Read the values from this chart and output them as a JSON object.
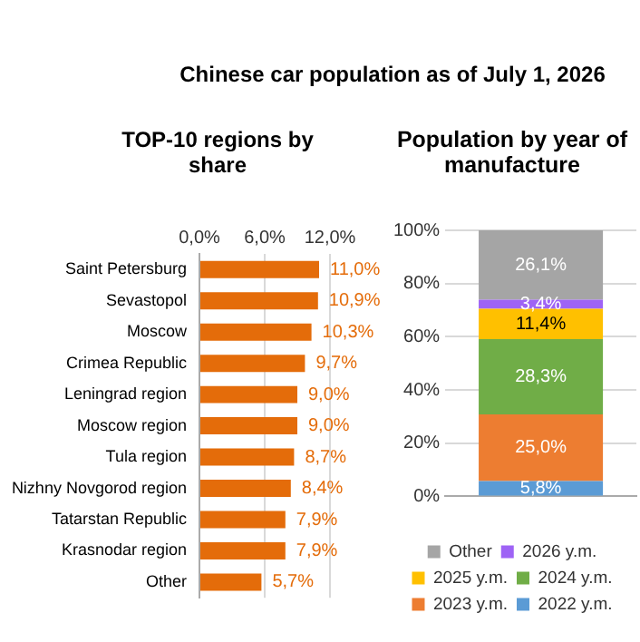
{
  "chart_data": [
    {
      "type": "bar",
      "title": "Chinese car population as of July 1, 2026",
      "subtitle": "TOP-10 regions by share",
      "orientation": "horizontal",
      "categories": [
        "Saint Petersburg",
        "Sevastopol",
        "Moscow",
        "Crimea Republic",
        "Leningrad region",
        "Moscow region",
        "Tula region",
        "Nizhny Novgorod region",
        "Tatarstan Republic",
        "Krasnodar region",
        "Other"
      ],
      "values": [
        11.0,
        10.9,
        10.3,
        9.7,
        9.0,
        9.0,
        8.7,
        8.4,
        7.9,
        7.9,
        5.7
      ],
      "value_labels": [
        "11,0%",
        "10,9%",
        "10,3%",
        "9,7%",
        "9,0%",
        "9,0%",
        "8,7%",
        "8,4%",
        "7,9%",
        "7,9%",
        "5,7%"
      ],
      "color": "#e46c0a",
      "xlim": [
        0,
        12
      ],
      "xticks": [
        {
          "value": 0,
          "label": "0,0%"
        },
        {
          "value": 6,
          "label": "6,0%"
        },
        {
          "value": 12,
          "label": "12,0%"
        }
      ],
      "grid": "x",
      "legend": false
    },
    {
      "type": "bar",
      "title": "Population by year of manufacture",
      "stacked": true,
      "categories": [
        null
      ],
      "series": [
        {
          "name": "2022 y.m.",
          "color": "#5b9bd5",
          "values": [
            5.8
          ],
          "value_labels": [
            "5,8%"
          ]
        },
        {
          "name": "2023 y.m.",
          "color": "#ed7d31",
          "values": [
            25.0
          ],
          "value_labels": [
            "25,0%"
          ]
        },
        {
          "name": "2024 y.m.",
          "color": "#70ad47",
          "values": [
            28.3
          ],
          "value_labels": [
            "28,3%"
          ]
        },
        {
          "name": "2025 y.m.",
          "color": "#ffc000",
          "values": [
            11.4
          ],
          "value_labels": [
            "11,4%"
          ]
        },
        {
          "name": "2026 y.m.",
          "color": "#9e63f5",
          "values": [
            3.4
          ],
          "value_labels": [
            "3,4%"
          ]
        },
        {
          "name": "Other",
          "color": "#a5a5a5",
          "values": [
            26.1
          ],
          "value_labels": [
            "26,1%"
          ]
        }
      ],
      "ylim": [
        0,
        100
      ],
      "yticks": [
        {
          "value": 0,
          "label": "0%"
        },
        {
          "value": 20,
          "label": "20%"
        },
        {
          "value": 40,
          "label": "40%"
        },
        {
          "value": 60,
          "label": "60%"
        },
        {
          "value": 80,
          "label": "80%"
        },
        {
          "value": 100,
          "label": "100%"
        }
      ],
      "grid": "y",
      "legend": "bottom"
    }
  ]
}
